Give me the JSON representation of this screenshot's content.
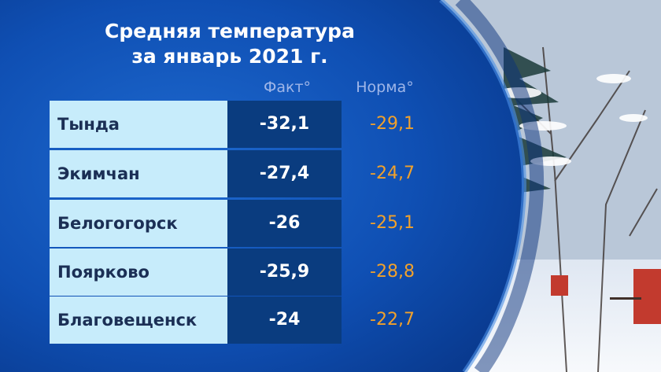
{
  "title_line1": "Средняя температура",
  "title_line2": "за январь 2021 г.",
  "headers": {
    "fact": "Факт°",
    "norm": "Норма°"
  },
  "colors": {
    "background": "#0b3f9a",
    "city_cell": "#c7ecfb",
    "fact_cell": "#0a3c7f",
    "norm_text": "#f1a12b"
  },
  "chart_data": {
    "type": "table",
    "title": "Средняя температура за январь 2021 г.",
    "columns": [
      "Факт°",
      "Норма°"
    ],
    "rows": [
      {
        "city": "Тында",
        "fact": "-32,1",
        "norm": "-29,1"
      },
      {
        "city": "Экимчан",
        "fact": "-27,4",
        "norm": "-24,7"
      },
      {
        "city": "Белогогорск",
        "fact": "-26",
        "norm": "-25,1"
      },
      {
        "city": "Поярково",
        "fact": "-25,9",
        "norm": "-28,8"
      },
      {
        "city": "Благовещенск",
        "fact": "-24",
        "norm": "-22,7"
      }
    ]
  }
}
